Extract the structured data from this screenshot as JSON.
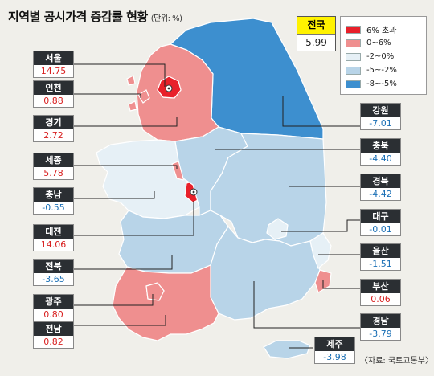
{
  "title": "지역별 공시가격 증감률 현황",
  "unit": "(단위: %)",
  "national": {
    "name": "전국",
    "value": "5.99"
  },
  "legend": [
    {
      "label": "6% 초과",
      "color": "#e8202a"
    },
    {
      "label": "0~6%",
      "color": "#ef8f8f"
    },
    {
      "label": "-2~0%",
      "color": "#e6f0f6"
    },
    {
      "label": "-5~-2%",
      "color": "#b8d4e8"
    },
    {
      "label": "-8~-5%",
      "color": "#3d8fcf"
    }
  ],
  "colors": {
    "positive_text": "#d81e1e",
    "negative_text": "#1a6fb5",
    "sea": "#f0efea",
    "border": "#ffffff"
  },
  "regions": [
    {
      "id": "seoul",
      "name": "서울",
      "value": "14.75",
      "sign": "pos"
    },
    {
      "id": "incheon",
      "name": "인천",
      "value": "0.88",
      "sign": "pos"
    },
    {
      "id": "gyeonggi",
      "name": "경기",
      "value": "2.72",
      "sign": "pos"
    },
    {
      "id": "sejong",
      "name": "세종",
      "value": "5.78",
      "sign": "pos"
    },
    {
      "id": "chungnam",
      "name": "충남",
      "value": "-0.55",
      "sign": "neg"
    },
    {
      "id": "daejeon",
      "name": "대전",
      "value": "14.06",
      "sign": "pos"
    },
    {
      "id": "jeonbuk",
      "name": "전북",
      "value": "-3.65",
      "sign": "neg"
    },
    {
      "id": "gwangju",
      "name": "광주",
      "value": "0.80",
      "sign": "pos"
    },
    {
      "id": "jeonnam",
      "name": "전남",
      "value": "0.82",
      "sign": "pos"
    },
    {
      "id": "gangwon",
      "name": "강원",
      "value": "-7.01",
      "sign": "neg"
    },
    {
      "id": "chungbuk",
      "name": "충북",
      "value": "-4.40",
      "sign": "neg"
    },
    {
      "id": "gyeongbuk",
      "name": "경북",
      "value": "-4.42",
      "sign": "neg"
    },
    {
      "id": "daegu",
      "name": "대구",
      "value": "-0.01",
      "sign": "neg"
    },
    {
      "id": "ulsan",
      "name": "울산",
      "value": "-1.51",
      "sign": "neg"
    },
    {
      "id": "busan",
      "name": "부산",
      "value": "0.06",
      "sign": "pos"
    },
    {
      "id": "gyeongnam",
      "name": "경남",
      "value": "-3.79",
      "sign": "neg"
    },
    {
      "id": "jeju",
      "name": "제주",
      "value": "-3.98",
      "sign": "neg"
    }
  ],
  "source": "〈자료: 국토교통부〉"
}
